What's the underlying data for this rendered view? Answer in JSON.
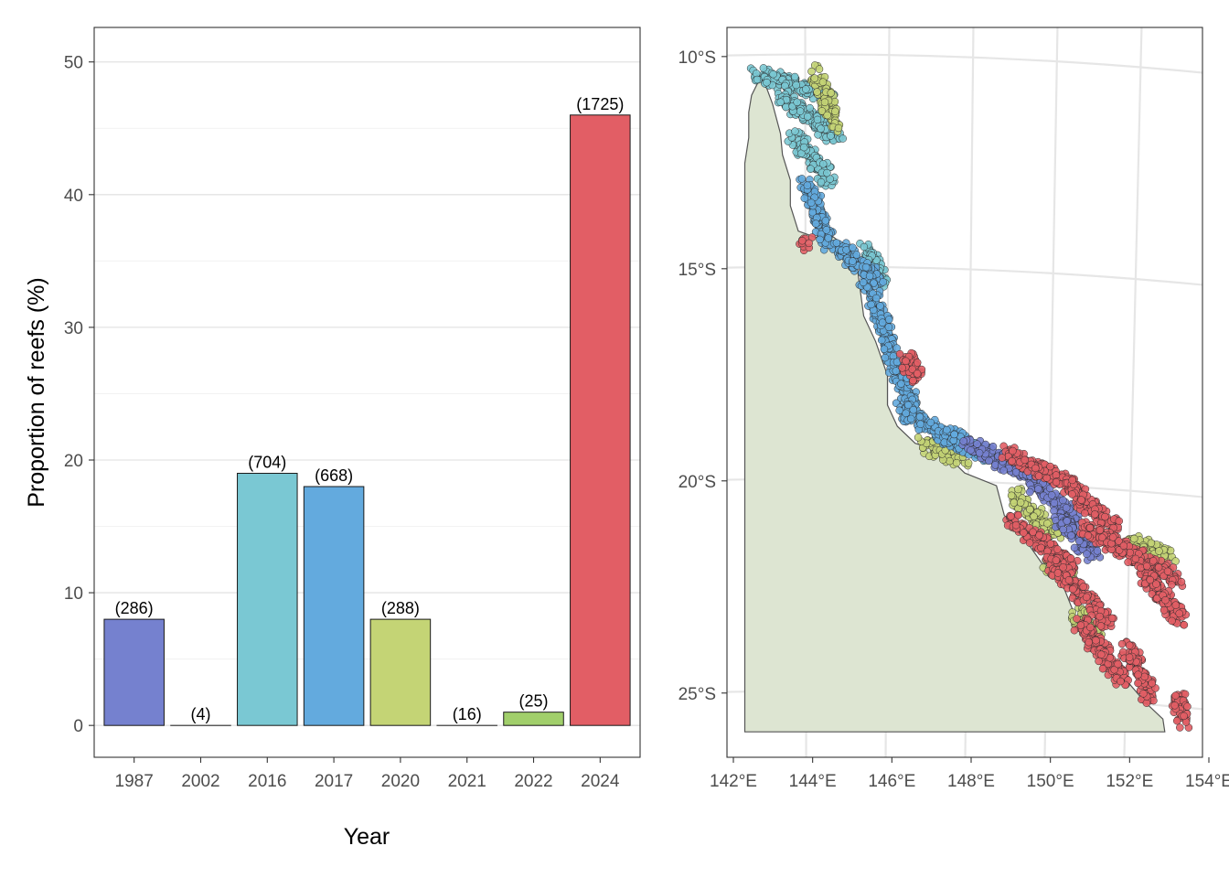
{
  "colors": {
    "y1987": "#7581cf",
    "y2002": "#9aa3dc",
    "y2016": "#7ac8d3",
    "y2017": "#63aade",
    "y2020": "#c4d475",
    "y2021": "#a9d477",
    "y2022": "#a1cf6b",
    "y2024": "#e25e65",
    "land": "#dde5d2",
    "coast": "#555555"
  },
  "chart_data": [
    {
      "type": "bar",
      "title": "",
      "xlabel": "Year",
      "ylabel": "Proportion of reefs (%)",
      "ylim": [
        -2.4,
        52.6
      ],
      "yticks": [
        "0",
        "10",
        "20",
        "30",
        "40",
        "50"
      ],
      "categories": [
        "1987",
        "2002",
        "2016",
        "2017",
        "2020",
        "2021",
        "2022",
        "2024"
      ],
      "values": [
        8,
        0,
        19,
        18,
        8,
        0,
        1,
        46
      ],
      "labels": [
        "(286)",
        "(4)",
        "(704)",
        "(668)",
        "(288)",
        "(16)",
        "(25)",
        "(1725)"
      ],
      "color_keys": [
        "y1987",
        "y2002",
        "y2016",
        "y2017",
        "y2020",
        "y2021",
        "y2022",
        "y2024"
      ]
    },
    {
      "type": "scatter",
      "title": "",
      "xlabel": "",
      "ylabel": "",
      "xlim": [
        142,
        154
      ],
      "ylim": [
        -26.6,
        -9.4
      ],
      "xticks": [
        "142°E",
        "144°E",
        "146°E",
        "148°E",
        "150°E",
        "152°E",
        "154°E"
      ],
      "yticks": [
        "10°S",
        "15°S",
        "20°S",
        "25°S"
      ],
      "coastline": [
        [
          142.45,
          -26.0
        ],
        [
          142.45,
          -12.6
        ],
        [
          142.55,
          -12.0
        ],
        [
          142.55,
          -11.4
        ],
        [
          142.62,
          -11.0
        ],
        [
          142.78,
          -10.7
        ],
        [
          142.9,
          -10.5
        ],
        [
          142.95,
          -10.7
        ],
        [
          143.15,
          -11.2
        ],
        [
          143.35,
          -11.9
        ],
        [
          143.4,
          -12.4
        ],
        [
          143.6,
          -13.0
        ],
        [
          143.6,
          -13.6
        ],
        [
          143.8,
          -14.2
        ],
        [
          144.25,
          -14.35
        ],
        [
          144.5,
          -14.2
        ],
        [
          144.9,
          -14.5
        ],
        [
          145.25,
          -14.8
        ],
        [
          145.35,
          -15.5
        ],
        [
          145.45,
          -16.2
        ],
        [
          145.75,
          -16.8
        ],
        [
          146.05,
          -17.6
        ],
        [
          146.05,
          -18.3
        ],
        [
          146.3,
          -18.8
        ],
        [
          146.75,
          -19.2
        ],
        [
          147.45,
          -19.4
        ],
        [
          148.0,
          -19.9
        ],
        [
          148.8,
          -20.2
        ],
        [
          149.0,
          -20.9
        ],
        [
          149.4,
          -21.3
        ],
        [
          150.0,
          -22.1
        ],
        [
          150.5,
          -22.6
        ],
        [
          150.8,
          -23.3
        ],
        [
          151.3,
          -24.0
        ],
        [
          152.0,
          -24.7
        ],
        [
          152.55,
          -25.3
        ],
        [
          153.0,
          -25.7
        ],
        [
          153.05,
          -26.0
        ]
      ],
      "series": [
        {
          "name": "2016",
          "color_key": "y2016",
          "density": 4,
          "segments": [
            {
              "lon": [
                142.75,
                144.6
              ],
              "lat": [
                -10.5,
                -11.0
              ]
            },
            {
              "lon": [
                143.3,
                144.8
              ],
              "lat": [
                -11.0,
                -12.0
              ]
            },
            {
              "lon": [
                143.7,
                144.6
              ],
              "lat": [
                -12.0,
                -13.0
              ]
            },
            {
              "lon": [
                145.5,
                145.9
              ],
              "lat": [
                -14.6,
                -15.4
              ]
            }
          ]
        },
        {
          "name": "2020",
          "color_key": "y2020",
          "density": 3,
          "segments": [
            {
              "lon": [
                144.2,
                144.8
              ],
              "lat": [
                -10.4,
                -11.8
              ]
            },
            {
              "lon": [
                146.9,
                148.0
              ],
              "lat": [
                -19.2,
                -19.6
              ]
            },
            {
              "lon": [
                149.2,
                150.3
              ],
              "lat": [
                -20.4,
                -21.3
              ]
            },
            {
              "lon": [
                150.1,
                150.6
              ],
              "lat": [
                -22.0,
                -22.4
              ]
            },
            {
              "lon": [
                150.8,
                151.4
              ],
              "lat": [
                -23.2,
                -23.7
              ]
            },
            {
              "lon": [
                152.2,
                153.2
              ],
              "lat": [
                -21.5,
                -21.9
              ]
            }
          ]
        },
        {
          "name": "2017",
          "color_key": "y2017",
          "density": 4,
          "segments": [
            {
              "lon": [
                144.0,
                144.6
              ],
              "lat": [
                -13.0,
                -14.6
              ]
            },
            {
              "lon": [
                144.8,
                145.8
              ],
              "lat": [
                -14.6,
                -15.3
              ]
            },
            {
              "lon": [
                145.5,
                146.1
              ],
              "lat": [
                -15.3,
                -16.8
              ]
            },
            {
              "lon": [
                146.0,
                146.7
              ],
              "lat": [
                -16.8,
                -18.4
              ]
            },
            {
              "lon": [
                146.4,
                147.8
              ],
              "lat": [
                -18.4,
                -19.2
              ]
            },
            {
              "lon": [
                147.6,
                148.6
              ],
              "lat": [
                -19.0,
                -19.5
              ]
            }
          ]
        },
        {
          "name": "1987",
          "color_key": "y1987",
          "density": 3,
          "segments": [
            {
              "lon": [
                148.0,
                149.8
              ],
              "lat": [
                -19.2,
                -20.0
              ]
            },
            {
              "lon": [
                149.6,
                150.8
              ],
              "lat": [
                -20.0,
                -21.0
              ]
            },
            {
              "lon": [
                150.4,
                151.3
              ],
              "lat": [
                -21.0,
                -21.9
              ]
            }
          ]
        },
        {
          "name": "2024",
          "color_key": "y2024",
          "density": 4,
          "segments": [
            {
              "lon": [
                146.5,
                146.8
              ],
              "lat": [
                -17.2,
                -17.6
              ]
            },
            {
              "lon": [
                149.0,
                150.8
              ],
              "lat": [
                -19.4,
                -20.2
              ]
            },
            {
              "lon": [
                150.6,
                151.8
              ],
              "lat": [
                -20.2,
                -21.2
              ]
            },
            {
              "lon": [
                151.0,
                153.4
              ],
              "lat": [
                -21.2,
                -22.4
              ]
            },
            {
              "lon": [
                152.5,
                153.5
              ],
              "lat": [
                -22.2,
                -23.4
              ]
            },
            {
              "lon": [
                149.2,
                150.8
              ],
              "lat": [
                -21.0,
                -22.2
              ]
            },
            {
              "lon": [
                150.2,
                151.6
              ],
              "lat": [
                -22.0,
                -23.4
              ]
            },
            {
              "lon": [
                150.9,
                152.0
              ],
              "lat": [
                -23.4,
                -24.8
              ]
            },
            {
              "lon": [
                152.1,
                152.7
              ],
              "lat": [
                -24.0,
                -25.2
              ]
            },
            {
              "lon": [
                153.4,
                153.5
              ],
              "lat": [
                -25.2,
                -25.8
              ]
            },
            {
              "lon": [
                144.0,
                144.0
              ],
              "lat": [
                -14.5,
                -14.5
              ]
            }
          ]
        }
      ]
    }
  ]
}
